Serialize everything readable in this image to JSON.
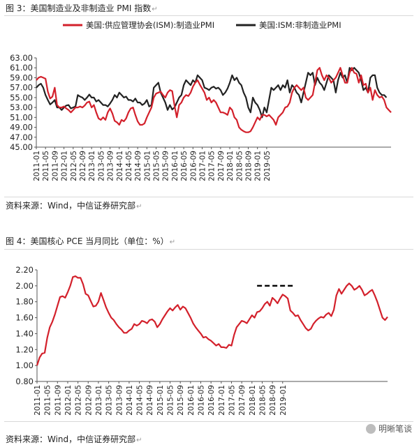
{
  "captions": {
    "fig3": "图 3：美国制造业及非制造业 PMI 指数",
    "fig4": "图 4：美国核心 PCE 当月同比（单位：%）",
    "source1": "资料来源：Wind，中信证券研究部",
    "source2": "资料来源：Wind，中信证券研究部",
    "watermark": "明晰笔谈"
  },
  "chart_data": [
    {
      "type": "line",
      "title": "",
      "xlabel": "",
      "ylabel": "",
      "ylim": [
        45.0,
        63.0
      ],
      "yticks": [
        "63.00",
        "61.00",
        "59.00",
        "57.00",
        "55.00",
        "53.00",
        "51.00",
        "49.00",
        "47.00",
        "45.00"
      ],
      "xticks": [
        "2011-01",
        "2011-05",
        "2011-09",
        "2012-01",
        "2012-05",
        "2012-09",
        "2013-01",
        "2013-05",
        "2013-09",
        "2014-01",
        "2014-05",
        "2014-09",
        "2015-01",
        "2015-05",
        "2015-09",
        "2016-01",
        "2016-05",
        "2016-09",
        "2017-01",
        "2017-05",
        "2017-09",
        "2018-01",
        "2018-05",
        "2018-09",
        "2019-01",
        "2019-05"
      ],
      "x_start": "2011-01",
      "legend_position": "top",
      "grid": false,
      "series": [
        {
          "name": "美国:供应管理协会(ISM):制造业PMI",
          "color": "#d3202b",
          "values": [
            58.5,
            59.0,
            59.2,
            59.0,
            58.8,
            56.2,
            54.8,
            55.2,
            57.0,
            53.5,
            53.0,
            53.0,
            53.2,
            52.8,
            52.5,
            52.0,
            52.5,
            53.0,
            53.0,
            53.2,
            53.0,
            53.4,
            54.0,
            54.2,
            53.0,
            53.5,
            52.0,
            50.8,
            50.5,
            51.0,
            50.5,
            52.0,
            52.8,
            51.8,
            50.3,
            50.0,
            49.5,
            50.5,
            50.2,
            50.8,
            52.0,
            52.8,
            53.0,
            51.5,
            50.2,
            49.5,
            49.5,
            49.8,
            51.0,
            52.0,
            53.0,
            55.0,
            55.8,
            56.0,
            56.2,
            55.5,
            55.0,
            56.0,
            56.5,
            56.3,
            53.4,
            51.0,
            53.5,
            54.0,
            55.0,
            55.5,
            55.3,
            56.0,
            57.2,
            58.0,
            58.5,
            57.6,
            56.8,
            56.0,
            54.5,
            55.0,
            54.0,
            54.5,
            54.0,
            53.0,
            52.0,
            52.0,
            51.8,
            51.5,
            53.0,
            52.5,
            51.0,
            50.5,
            49.0,
            48.5,
            48.2,
            48.0,
            48.0,
            48.2,
            49.0,
            50.0,
            51.0,
            50.5,
            51.5,
            51.5,
            51.2,
            51.5,
            51.0,
            50.5,
            49.5,
            51.0,
            51.5,
            52.0,
            53.0,
            53.2,
            54.0,
            56.0,
            57.0,
            57.5,
            57.0,
            56.5,
            57.0,
            55.0,
            54.5,
            55.0,
            55.5,
            58.0,
            60.5,
            61.0,
            59.5,
            58.5,
            59.5,
            59.0,
            58.0,
            58.5,
            59.0,
            60.0,
            61.0,
            59.5,
            58.0,
            58.0,
            60.0,
            61.0,
            60.0,
            59.8,
            58.0,
            59.5,
            57.5,
            57.8,
            56.0,
            57.0,
            54.5,
            56.5,
            55.5,
            55.0,
            55.2,
            54.5,
            53.0,
            52.5,
            52.0
          ]
        },
        {
          "name": "美国:ISM:非制造业PMI",
          "color": "#222222",
          "values": [
            57.0,
            57.5,
            57.8,
            57.0,
            55.5,
            54.5,
            53.6,
            54.0,
            54.5,
            53.0,
            53.0,
            52.5,
            53.0,
            53.4,
            53.5,
            52.8,
            53.0,
            53.2,
            55.5,
            55.2,
            55.0,
            54.5,
            55.0,
            55.6,
            55.0,
            55.0,
            54.2,
            54.5,
            54.0,
            53.5,
            53.5,
            53.2,
            53.8,
            54.5,
            55.5,
            55.0,
            56.0,
            55.5,
            55.0,
            55.2,
            54.5,
            54.5,
            54.2,
            54.8,
            54.0,
            54.0,
            53.5,
            53.8,
            54.5,
            53.2,
            53.5,
            57.0,
            57.5,
            58.0,
            56.0,
            55.0,
            54.0,
            52.5,
            53.5,
            52.6,
            53.0,
            54.0,
            55.0,
            55.5,
            57.5,
            58.5,
            58.0,
            57.5,
            58.5,
            58.0,
            59.5,
            59.0,
            58.5,
            57.0,
            56.8,
            56.5,
            57.0,
            57.2,
            56.8,
            57.0,
            56.5,
            55.5,
            56.0,
            56.8,
            58.0,
            59.5,
            58.5,
            59.0,
            58.0,
            57.5,
            56.0,
            55.0,
            53.0,
            52.0,
            55.0,
            54.0,
            53.5,
            52.5,
            51.0,
            53.0,
            52.0,
            54.5,
            57.0,
            56.5,
            57.0,
            57.5,
            56.5,
            57.5,
            57.0,
            58.5,
            56.0,
            57.5,
            57.0,
            56.0,
            55.5,
            54.0,
            56.0,
            58.0,
            60.0,
            59.5,
            60.0,
            57.5,
            59.0,
            58.0,
            57.5,
            56.5,
            58.0,
            59.5,
            59.0,
            58.5,
            56.0,
            58.5,
            60.0,
            59.0,
            59.5,
            58.0,
            61.0,
            60.5,
            61.0,
            60.5,
            60.0,
            58.5,
            56.5,
            57.0,
            56.0,
            59.0,
            59.5,
            59.5,
            57.0,
            56.0,
            55.5,
            55.5,
            55.0
          ]
        }
      ]
    },
    {
      "type": "line",
      "title": "",
      "xlabel": "",
      "ylabel": "",
      "ylim": [
        0.8,
        2.2
      ],
      "yticks": [
        "2.20",
        "2.00",
        "1.80",
        "1.60",
        "1.40",
        "1.20",
        "1.00",
        "0.80"
      ],
      "xticks": [
        "2011-01",
        "2011-05",
        "2011-09",
        "2012-01",
        "2012-05",
        "2012-09",
        "2013-01",
        "2013-05",
        "2013-09",
        "2014-01",
        "2014-05",
        "2014-09",
        "2015-01",
        "2015-05",
        "2015-09",
        "2016-01",
        "2016-05",
        "2016-09",
        "2017-01",
        "2017-05",
        "2017-09",
        "2018-01",
        "2018-05",
        "2018-09",
        "2019-01"
      ],
      "x_start": "2011-01",
      "grid": false,
      "series": [
        {
          "name": "",
          "color": "#d3202b",
          "values": [
            1.0,
            1.1,
            1.15,
            1.16,
            1.35,
            1.48,
            1.55,
            1.64,
            1.75,
            1.86,
            1.87,
            1.85,
            1.92,
            2.0,
            2.11,
            2.12,
            2.1,
            2.1,
            2.02,
            1.9,
            1.88,
            1.81,
            1.74,
            1.75,
            1.8,
            1.91,
            1.82,
            1.73,
            1.66,
            1.6,
            1.57,
            1.52,
            1.48,
            1.45,
            1.41,
            1.41,
            1.44,
            1.46,
            1.52,
            1.5,
            1.52,
            1.56,
            1.55,
            1.53,
            1.57,
            1.58,
            1.55,
            1.48,
            1.52,
            1.58,
            1.63,
            1.68,
            1.72,
            1.69,
            1.73,
            1.76,
            1.7,
            1.74,
            1.72,
            1.66,
            1.6,
            1.53,
            1.48,
            1.44,
            1.4,
            1.35,
            1.36,
            1.33,
            1.31,
            1.28,
            1.25,
            1.27,
            1.23,
            1.23,
            1.22,
            1.26,
            1.25,
            1.38,
            1.48,
            1.52,
            1.56,
            1.55,
            1.53,
            1.58,
            1.63,
            1.6,
            1.67,
            1.68,
            1.72,
            1.77,
            1.8,
            1.75,
            1.85,
            1.82,
            1.78,
            1.84,
            1.89,
            1.87,
            1.84,
            1.69,
            1.66,
            1.62,
            1.63,
            1.57,
            1.52,
            1.47,
            1.44,
            1.46,
            1.52,
            1.56,
            1.59,
            1.61,
            1.6,
            1.64,
            1.66,
            1.62,
            1.7,
            1.88,
            1.96,
            1.9,
            1.95,
            2.0,
            2.03,
            2.0,
            1.95,
            1.97,
            2.0,
            1.95,
            1.88,
            1.9,
            1.93,
            1.95,
            1.88,
            1.8,
            1.7,
            1.6,
            1.57,
            1.61
          ]
        }
      ],
      "annotations": [
        {
          "type": "dashed_hline",
          "y": 2.0,
          "x_from": "2018-03",
          "x_to": "2019-05",
          "color": "#000000"
        }
      ]
    }
  ]
}
